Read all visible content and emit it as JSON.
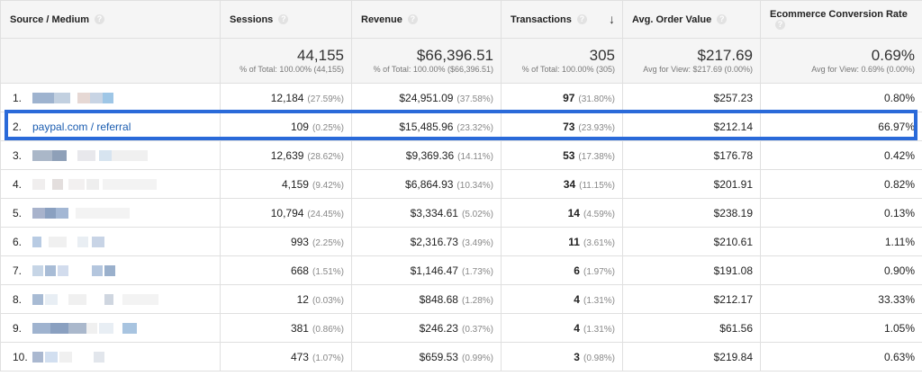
{
  "columns": [
    {
      "label": "Source / Medium"
    },
    {
      "label": "Sessions"
    },
    {
      "label": "Revenue"
    },
    {
      "label": "Transactions"
    },
    {
      "label": "Avg. Order Value"
    },
    {
      "label": "Ecommerce Conversion Rate"
    }
  ],
  "help_icon": "question-mark-icon",
  "sort_icon": "arrow-down-icon",
  "sort_glyph": "↓",
  "totals": {
    "sessions": {
      "value": "44,155",
      "sub": "% of Total: 100.00% (44,155)"
    },
    "revenue": {
      "value": "$66,396.51",
      "sub": "% of Total: 100.00% ($66,396.51)"
    },
    "transactions": {
      "value": "305",
      "sub": "% of Total: 100.00% (305)"
    },
    "aov": {
      "value": "$217.69",
      "sub": "Avg for View: $217.69 (0.00%)"
    },
    "conv": {
      "value": "0.69%",
      "sub": "Avg for View: 0.69% (0.00%)"
    }
  },
  "rows": [
    {
      "idx": "1.",
      "source": "",
      "sessions": "12,184",
      "sessions_pct": "(27.59%)",
      "revenue": "$24,951.09",
      "revenue_pct": "(37.58%)",
      "transactions": "97",
      "transactions_pct": "(31.80%)",
      "aov": "$257.23",
      "conv": "0.80%"
    },
    {
      "idx": "2.",
      "source": "paypal.com / referral",
      "sessions": "109",
      "sessions_pct": "(0.25%)",
      "revenue": "$15,485.96",
      "revenue_pct": "(23.32%)",
      "transactions": "73",
      "transactions_pct": "(23.93%)",
      "aov": "$212.14",
      "conv": "66.97%"
    },
    {
      "idx": "3.",
      "source": "",
      "sessions": "12,639",
      "sessions_pct": "(28.62%)",
      "revenue": "$9,369.36",
      "revenue_pct": "(14.11%)",
      "transactions": "53",
      "transactions_pct": "(17.38%)",
      "aov": "$176.78",
      "conv": "0.42%"
    },
    {
      "idx": "4.",
      "source": "",
      "sessions": "4,159",
      "sessions_pct": "(9.42%)",
      "revenue": "$6,864.93",
      "revenue_pct": "(10.34%)",
      "transactions": "34",
      "transactions_pct": "(11.15%)",
      "aov": "$201.91",
      "conv": "0.82%"
    },
    {
      "idx": "5.",
      "source": "",
      "sessions": "10,794",
      "sessions_pct": "(24.45%)",
      "revenue": "$3,334.61",
      "revenue_pct": "(5.02%)",
      "transactions": "14",
      "transactions_pct": "(4.59%)",
      "aov": "$238.19",
      "conv": "0.13%"
    },
    {
      "idx": "6.",
      "source": "",
      "sessions": "993",
      "sessions_pct": "(2.25%)",
      "revenue": "$2,316.73",
      "revenue_pct": "(3.49%)",
      "transactions": "11",
      "transactions_pct": "(3.61%)",
      "aov": "$210.61",
      "conv": "1.11%"
    },
    {
      "idx": "7.",
      "source": "",
      "sessions": "668",
      "sessions_pct": "(1.51%)",
      "revenue": "$1,146.47",
      "revenue_pct": "(1.73%)",
      "transactions": "6",
      "transactions_pct": "(1.97%)",
      "aov": "$191.08",
      "conv": "0.90%"
    },
    {
      "idx": "8.",
      "source": "",
      "sessions": "12",
      "sessions_pct": "(0.03%)",
      "revenue": "$848.68",
      "revenue_pct": "(1.28%)",
      "transactions": "4",
      "transactions_pct": "(1.31%)",
      "aov": "$212.17",
      "conv": "33.33%"
    },
    {
      "idx": "9.",
      "source": "",
      "sessions": "381",
      "sessions_pct": "(0.86%)",
      "revenue": "$246.23",
      "revenue_pct": "(0.37%)",
      "transactions": "4",
      "transactions_pct": "(1.31%)",
      "aov": "$61.56",
      "conv": "1.05%"
    },
    {
      "idx": "10.",
      "source": "",
      "sessions": "473",
      "sessions_pct": "(1.07%)",
      "revenue": "$659.53",
      "revenue_pct": "(0.99%)",
      "transactions": "3",
      "transactions_pct": "(0.98%)",
      "aov": "$219.84",
      "conv": "0.63%"
    }
  ],
  "colors": {
    "highlight": "#2a6ad9",
    "link": "#1a5cb0",
    "header_bg": "#f5f5f5"
  }
}
